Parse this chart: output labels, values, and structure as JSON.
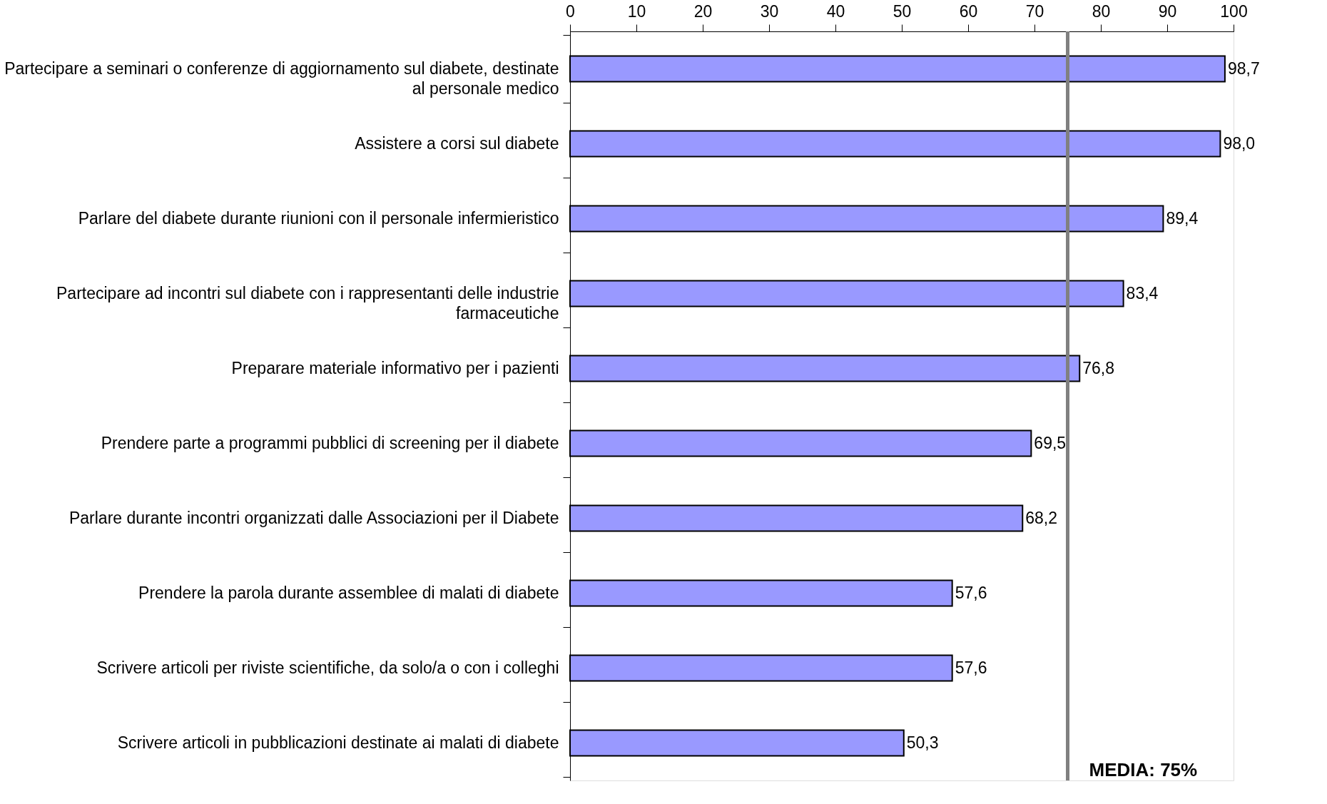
{
  "chart_data": {
    "type": "bar",
    "orientation": "horizontal",
    "categories": [
      "Partecipare a seminari o conferenze di aggiornamento sul diabete, destinate al personale medico",
      "Assistere a corsi sul diabete",
      "Parlare del diabete durante riunioni con il personale infermieristico",
      "Partecipare ad incontri sul diabete con i rappresentanti delle industrie farmaceutiche",
      "Preparare materiale informativo per i pazienti",
      "Prendere parte a programmi pubblici di screening per il diabete",
      "Parlare durante incontri organizzati dalle Associazioni per il Diabete",
      "Prendere la parola durante assemblee di malati di diabete",
      "Scrivere articoli per riviste scientifiche, da solo/a o con i colleghi",
      "Scrivere articoli in pubblicazioni destinate ai malati di diabete"
    ],
    "values": [
      98.7,
      98.0,
      89.4,
      83.4,
      76.8,
      69.5,
      68.2,
      57.6,
      57.6,
      50.3
    ],
    "value_labels": [
      "98,7",
      "98,0",
      "89,4",
      "83,4",
      "76,8",
      "69,5",
      "68,2",
      "57,6",
      "57,6",
      "50,3"
    ],
    "color": "#9999ff",
    "xlim": [
      0,
      100
    ],
    "xticks": [
      0,
      10,
      20,
      30,
      40,
      50,
      60,
      70,
      80,
      90,
      100
    ],
    "grid": false,
    "ref_lines": [
      {
        "axis": "x",
        "value": 75,
        "label": "MEDIA: 75%",
        "color": "#808080"
      }
    ]
  }
}
